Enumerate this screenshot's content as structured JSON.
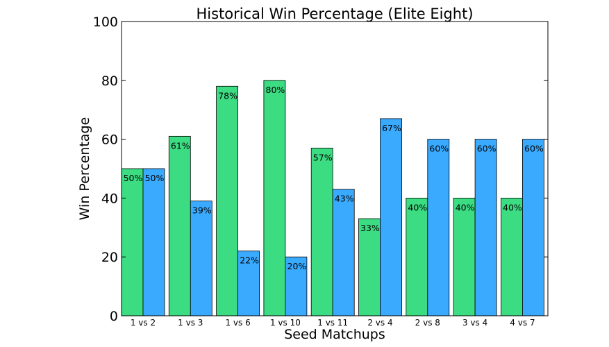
{
  "chart_data": {
    "type": "bar",
    "title": "Historical Win Percentage (Elite Eight)",
    "xlabel": "Seed Matchups",
    "ylabel": "Win Percentage",
    "ylim": [
      0,
      100
    ],
    "yticks": [
      "0",
      "20",
      "40",
      "60",
      "80",
      "100"
    ],
    "categories": [
      "1 vs 2",
      "1 vs 3",
      "1 vs 6",
      "1 vs 10",
      "1 vs 11",
      "2 vs 4",
      "2 vs 8",
      "3 vs 4",
      "4 vs 7"
    ],
    "series": [
      {
        "color": "#3cdc82",
        "values": [
          50,
          61,
          78,
          80,
          57,
          33,
          40,
          40,
          40
        ],
        "labels": [
          "50%",
          "61%",
          "78%",
          "80%",
          "57%",
          "33%",
          "40%",
          "40%",
          "40%"
        ]
      },
      {
        "color": "#3aaaff",
        "values": [
          50,
          39,
          22,
          20,
          43,
          67,
          60,
          60,
          60
        ],
        "labels": [
          "50%",
          "39%",
          "22%",
          "20%",
          "43%",
          "67%",
          "60%",
          "60%",
          "60%"
        ]
      }
    ],
    "grid": false,
    "legend": "none"
  }
}
